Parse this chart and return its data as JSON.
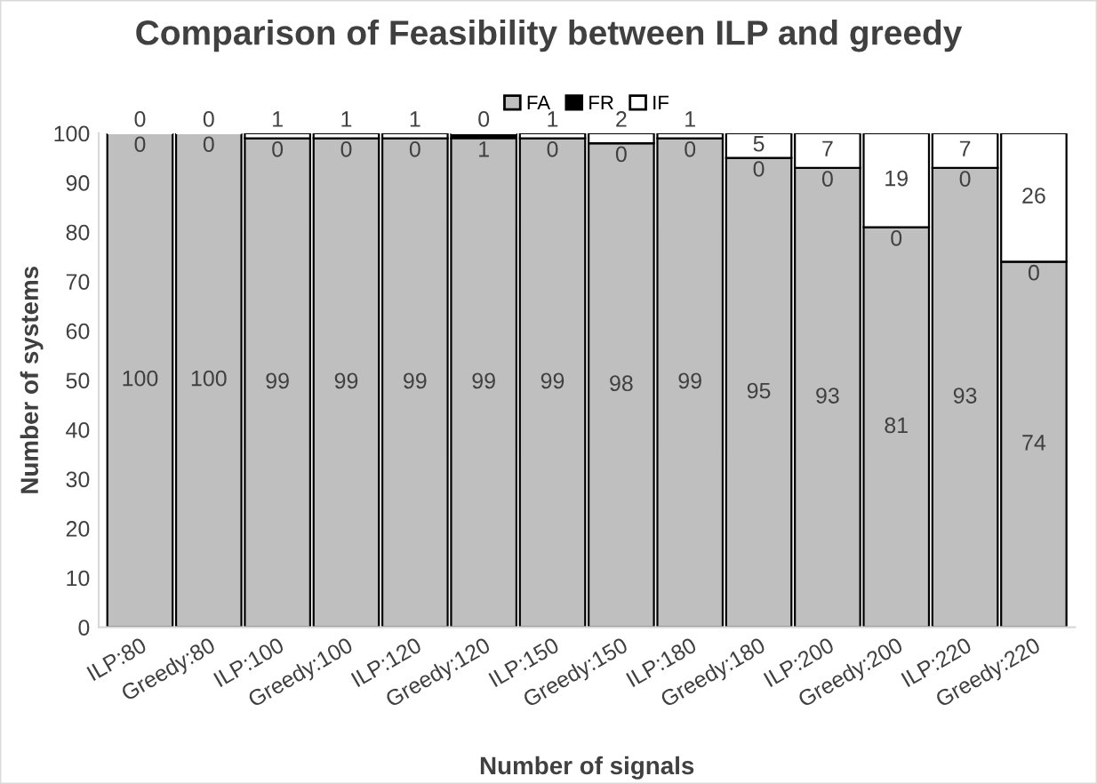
{
  "chart_data": {
    "type": "bar",
    "title": "Comparison of Feasibility between ILP and greedy",
    "xlabel": "Number of signals",
    "ylabel": "Number of systems",
    "categories": [
      "ILP:80",
      "Greedy:80",
      "ILP:100",
      "Greedy:100",
      "ILP:120",
      "Greedy:120",
      "ILP:150",
      "Greedy:150",
      "ILP:180",
      "Greedy:180",
      "ILP:200",
      "Greedy:200",
      "ILP:220",
      "Greedy:220"
    ],
    "stacked": true,
    "data_labels": true,
    "legend": "top",
    "grid": false,
    "ylim": [
      0,
      100
    ],
    "yticks": [
      0,
      10,
      20,
      30,
      40,
      50,
      60,
      70,
      80,
      90,
      100
    ],
    "series": [
      {
        "name": "FA",
        "color": "#bfbfbf",
        "values": [
          100,
          100,
          99,
          99,
          99,
          99,
          99,
          98,
          99,
          95,
          93,
          81,
          93,
          74
        ]
      },
      {
        "name": "FR",
        "color": "#000000",
        "values": [
          0,
          0,
          0,
          0,
          0,
          1,
          0,
          0,
          0,
          0,
          0,
          0,
          0,
          0
        ]
      },
      {
        "name": "IF",
        "color": "#ffffff",
        "values": [
          0,
          0,
          1,
          1,
          1,
          0,
          1,
          2,
          1,
          5,
          7,
          19,
          7,
          26
        ]
      }
    ]
  }
}
